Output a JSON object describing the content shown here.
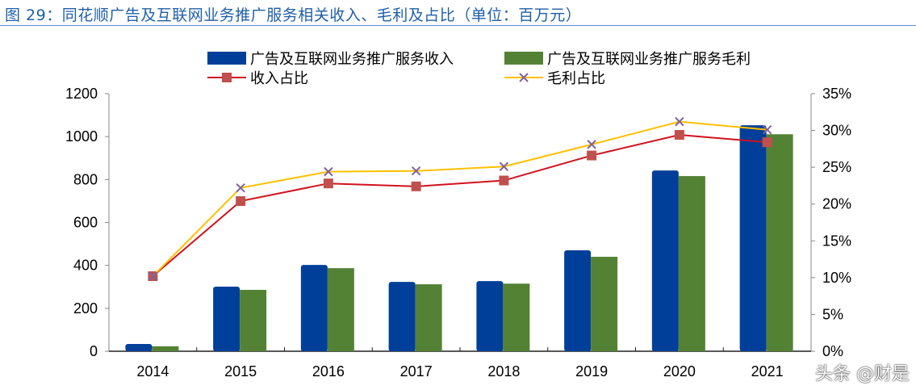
{
  "title": "图 29：同花顺广告及互联网业务推广服务相关收入、毛利及占比（单位：百万元）",
  "watermark": "头条 @财是",
  "chart_data": {
    "type": "bar+line",
    "categories": [
      "2014",
      "2015",
      "2016",
      "2017",
      "2018",
      "2019",
      "2020",
      "2021"
    ],
    "series": [
      {
        "name": "广告及互联网业务推广服务收入",
        "type": "bar",
        "axis": "left",
        "color": "#003f99",
        "values": [
          34,
          301,
          402,
          323,
          327,
          470,
          842,
          1053
        ]
      },
      {
        "name": "广告及互联网业务推广服务毛利",
        "type": "bar",
        "axis": "left",
        "color": "#548235",
        "values": [
          23,
          286,
          387,
          312,
          315,
          440,
          816,
          1011
        ]
      },
      {
        "name": "收入占比",
        "type": "line",
        "axis": "right",
        "marker": "square",
        "color": "#d0121f",
        "marker_color": "#c0504d",
        "values": [
          10.2,
          20.4,
          22.8,
          22.4,
          23.2,
          26.6,
          29.4,
          28.4
        ]
      },
      {
        "name": "毛利占比",
        "type": "line",
        "axis": "right",
        "marker": "x",
        "color": "#ffc000",
        "marker_color": "#7e649e",
        "values": [
          10.2,
          22.2,
          24.4,
          24.5,
          25.1,
          28.1,
          31.2,
          30.1
        ]
      }
    ],
    "left_axis": {
      "range": [
        0,
        1200
      ],
      "ticks": [
        "0",
        "200",
        "400",
        "600",
        "800",
        "1000",
        "1200"
      ]
    },
    "right_axis": {
      "range": [
        0,
        35
      ],
      "ticks": [
        "0%",
        "5%",
        "10%",
        "15%",
        "20%",
        "25%",
        "30%",
        "35%"
      ]
    },
    "grid": false,
    "legend": "top"
  }
}
